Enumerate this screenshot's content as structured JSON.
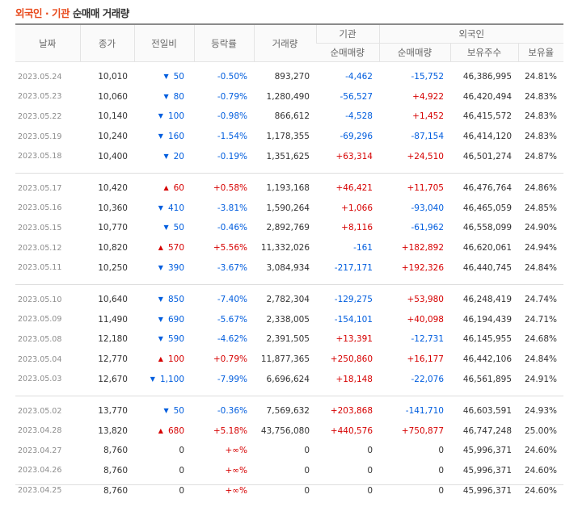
{
  "title": {
    "part1": "외국인",
    "dot": " · ",
    "part2": "기관",
    "part3": " 순매매 거래량"
  },
  "headers": {
    "date": "날짜",
    "close": "종가",
    "change": "전일비",
    "rate": "등락률",
    "volume": "거래량",
    "inst_group": "기관",
    "foreign_group": "외국인",
    "inst_net": "순매매량",
    "foreign_net": "순매매량",
    "holdings": "보유주수",
    "ratio": "보유율"
  },
  "colors": {
    "up": "#d60000",
    "down": "#005dde",
    "title_accent": "#e84a1c"
  },
  "groups": [
    [
      {
        "date": "2023.05.24",
        "close": "10,010",
        "dir": "down",
        "diff": "50",
        "rate": "-0.50%",
        "rate_dir": "down",
        "volume": "893,270",
        "inst": "-4,462",
        "inst_dir": "down",
        "foreign": "-15,752",
        "foreign_dir": "down",
        "holdings": "46,386,995",
        "ratio": "24.81%"
      },
      {
        "date": "2023.05.23",
        "close": "10,060",
        "dir": "down",
        "diff": "80",
        "rate": "-0.79%",
        "rate_dir": "down",
        "volume": "1,280,490",
        "inst": "-56,527",
        "inst_dir": "down",
        "foreign": "+4,922",
        "foreign_dir": "up",
        "holdings": "46,420,494",
        "ratio": "24.83%"
      },
      {
        "date": "2023.05.22",
        "close": "10,140",
        "dir": "down",
        "diff": "100",
        "rate": "-0.98%",
        "rate_dir": "down",
        "volume": "866,612",
        "inst": "-4,528",
        "inst_dir": "down",
        "foreign": "+1,452",
        "foreign_dir": "up",
        "holdings": "46,415,572",
        "ratio": "24.83%"
      },
      {
        "date": "2023.05.19",
        "close": "10,240",
        "dir": "down",
        "diff": "160",
        "rate": "-1.54%",
        "rate_dir": "down",
        "volume": "1,178,355",
        "inst": "-69,296",
        "inst_dir": "down",
        "foreign": "-87,154",
        "foreign_dir": "down",
        "holdings": "46,414,120",
        "ratio": "24.83%"
      },
      {
        "date": "2023.05.18",
        "close": "10,400",
        "dir": "down",
        "diff": "20",
        "rate": "-0.19%",
        "rate_dir": "down",
        "volume": "1,351,625",
        "inst": "+63,314",
        "inst_dir": "up",
        "foreign": "+24,510",
        "foreign_dir": "up",
        "holdings": "46,501,274",
        "ratio": "24.87%"
      }
    ],
    [
      {
        "date": "2023.05.17",
        "close": "10,420",
        "dir": "up",
        "diff": "60",
        "rate": "+0.58%",
        "rate_dir": "up",
        "volume": "1,193,168",
        "inst": "+46,421",
        "inst_dir": "up",
        "foreign": "+11,705",
        "foreign_dir": "up",
        "holdings": "46,476,764",
        "ratio": "24.86%"
      },
      {
        "date": "2023.05.16",
        "close": "10,360",
        "dir": "down",
        "diff": "410",
        "rate": "-3.81%",
        "rate_dir": "down",
        "volume": "1,590,264",
        "inst": "+1,066",
        "inst_dir": "up",
        "foreign": "-93,040",
        "foreign_dir": "down",
        "holdings": "46,465,059",
        "ratio": "24.85%"
      },
      {
        "date": "2023.05.15",
        "close": "10,770",
        "dir": "down",
        "diff": "50",
        "rate": "-0.46%",
        "rate_dir": "down",
        "volume": "2,892,769",
        "inst": "+8,116",
        "inst_dir": "up",
        "foreign": "-61,962",
        "foreign_dir": "down",
        "holdings": "46,558,099",
        "ratio": "24.90%"
      },
      {
        "date": "2023.05.12",
        "close": "10,820",
        "dir": "up",
        "diff": "570",
        "rate": "+5.56%",
        "rate_dir": "up",
        "volume": "11,332,026",
        "inst": "-161",
        "inst_dir": "down",
        "foreign": "+182,892",
        "foreign_dir": "up",
        "holdings": "46,620,061",
        "ratio": "24.94%"
      },
      {
        "date": "2023.05.11",
        "close": "10,250",
        "dir": "down",
        "diff": "390",
        "rate": "-3.67%",
        "rate_dir": "down",
        "volume": "3,084,934",
        "inst": "-217,171",
        "inst_dir": "down",
        "foreign": "+192,326",
        "foreign_dir": "up",
        "holdings": "46,440,745",
        "ratio": "24.84%"
      }
    ],
    [
      {
        "date": "2023.05.10",
        "close": "10,640",
        "dir": "down",
        "diff": "850",
        "rate": "-7.40%",
        "rate_dir": "down",
        "volume": "2,782,304",
        "inst": "-129,275",
        "inst_dir": "down",
        "foreign": "+53,980",
        "foreign_dir": "up",
        "holdings": "46,248,419",
        "ratio": "24.74%"
      },
      {
        "date": "2023.05.09",
        "close": "11,490",
        "dir": "down",
        "diff": "690",
        "rate": "-5.67%",
        "rate_dir": "down",
        "volume": "2,338,005",
        "inst": "-154,101",
        "inst_dir": "down",
        "foreign": "+40,098",
        "foreign_dir": "up",
        "holdings": "46,194,439",
        "ratio": "24.71%"
      },
      {
        "date": "2023.05.08",
        "close": "12,180",
        "dir": "down",
        "diff": "590",
        "rate": "-4.62%",
        "rate_dir": "down",
        "volume": "2,391,505",
        "inst": "+13,391",
        "inst_dir": "up",
        "foreign": "-12,731",
        "foreign_dir": "down",
        "holdings": "46,145,955",
        "ratio": "24.68%"
      },
      {
        "date": "2023.05.04",
        "close": "12,770",
        "dir": "up",
        "diff": "100",
        "rate": "+0.79%",
        "rate_dir": "up",
        "volume": "11,877,365",
        "inst": "+250,860",
        "inst_dir": "up",
        "foreign": "+16,177",
        "foreign_dir": "up",
        "holdings": "46,442,106",
        "ratio": "24.84%"
      },
      {
        "date": "2023.05.03",
        "close": "12,670",
        "dir": "down",
        "diff": "1,100",
        "rate": "-7.99%",
        "rate_dir": "down",
        "volume": "6,696,624",
        "inst": "+18,148",
        "inst_dir": "up",
        "foreign": "-22,076",
        "foreign_dir": "down",
        "holdings": "46,561,895",
        "ratio": "24.91%"
      }
    ],
    [
      {
        "date": "2023.05.02",
        "close": "13,770",
        "dir": "down",
        "diff": "50",
        "rate": "-0.36%",
        "rate_dir": "down",
        "volume": "7,569,632",
        "inst": "+203,868",
        "inst_dir": "up",
        "foreign": "-141,710",
        "foreign_dir": "down",
        "holdings": "46,603,591",
        "ratio": "24.93%"
      },
      {
        "date": "2023.04.28",
        "close": "13,820",
        "dir": "up",
        "diff": "680",
        "rate": "+5.18%",
        "rate_dir": "up",
        "volume": "43,756,080",
        "inst": "+440,576",
        "inst_dir": "up",
        "foreign": "+750,877",
        "foreign_dir": "up",
        "holdings": "46,747,248",
        "ratio": "25.00%"
      },
      {
        "date": "2023.04.27",
        "close": "8,760",
        "dir": "none",
        "diff": "0",
        "rate": "+∞%",
        "rate_dir": "up",
        "volume": "0",
        "inst": "0",
        "inst_dir": "none",
        "foreign": "0",
        "foreign_dir": "none",
        "holdings": "45,996,371",
        "ratio": "24.60%"
      },
      {
        "date": "2023.04.26",
        "close": "8,760",
        "dir": "none",
        "diff": "0",
        "rate": "+∞%",
        "rate_dir": "up",
        "volume": "0",
        "inst": "0",
        "inst_dir": "none",
        "foreign": "0",
        "foreign_dir": "none",
        "holdings": "45,996,371",
        "ratio": "24.60%"
      },
      {
        "date": "2023.04.25",
        "close": "8,760",
        "dir": "none",
        "diff": "0",
        "rate": "+∞%",
        "rate_dir": "up",
        "volume": "0",
        "inst": "0",
        "inst_dir": "none",
        "foreign": "0",
        "foreign_dir": "none",
        "holdings": "45,996,371",
        "ratio": "24.60%"
      }
    ]
  ]
}
